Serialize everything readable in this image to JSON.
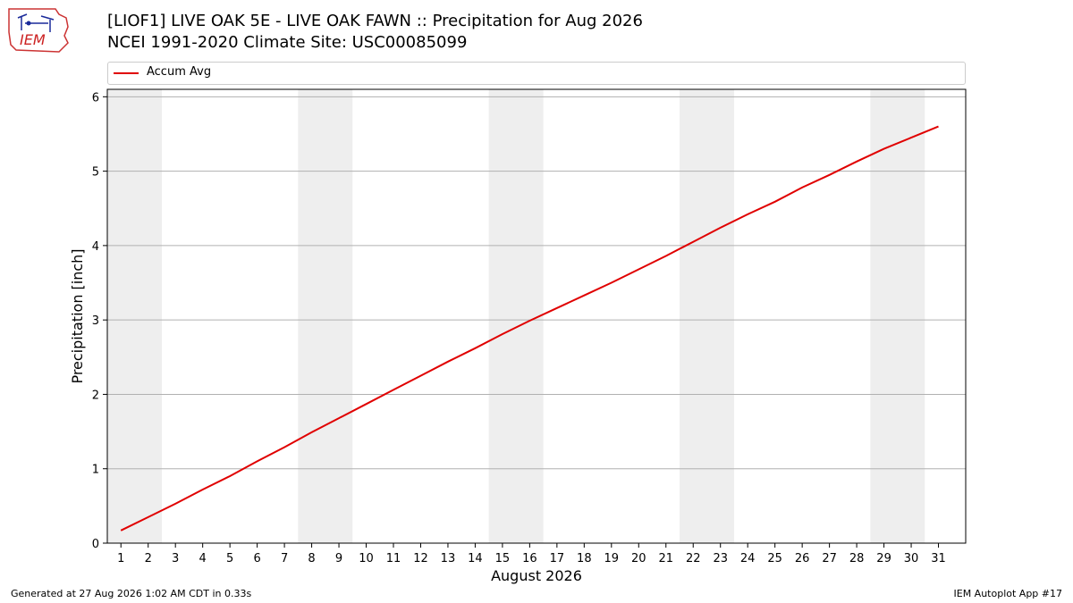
{
  "header": {
    "title_line1": "[LIOF1] LIVE OAK 5E - LIVE OAK FAWN :: Precipitation for Aug 2026",
    "title_line2": "NCEI 1991-2020 Climate Site: USC00085099",
    "logo_text": "IEM"
  },
  "footer": {
    "generated": "Generated at 27 Aug 2026 1:02 AM CDT in 0.33s",
    "app": "IEM Autoplot App #17"
  },
  "colors": {
    "series": "#e00000",
    "weekend_band": "#eeeeee",
    "grid": "#b0b0b0"
  },
  "chart_data": {
    "type": "line",
    "title": "[LIOF1] LIVE OAK 5E - LIVE OAK FAWN :: Precipitation for Aug 2026",
    "subtitle": "NCEI 1991-2020 Climate Site: USC00085099",
    "xlabel": "August 2026",
    "ylabel": "Precipitation [inch]",
    "xlim": [
      0.5,
      32
    ],
    "ylim": [
      0,
      6.1
    ],
    "x": [
      1,
      2,
      3,
      4,
      5,
      6,
      7,
      8,
      9,
      10,
      11,
      12,
      13,
      14,
      15,
      16,
      17,
      18,
      19,
      20,
      21,
      22,
      23,
      24,
      25,
      26,
      27,
      28,
      29,
      30,
      31
    ],
    "xticks": [
      "1",
      "2",
      "3",
      "4",
      "5",
      "6",
      "7",
      "8",
      "9",
      "10",
      "11",
      "12",
      "13",
      "14",
      "15",
      "16",
      "17",
      "18",
      "19",
      "20",
      "21",
      "22",
      "23",
      "24",
      "25",
      "26",
      "27",
      "28",
      "29",
      "30",
      "31"
    ],
    "yticks": [
      0,
      1,
      2,
      3,
      4,
      5,
      6
    ],
    "grid": "y",
    "legend_position": "top",
    "weekend_bands": [
      [
        0.5,
        2.5
      ],
      [
        7.5,
        9.5
      ],
      [
        14.5,
        16.5
      ],
      [
        21.5,
        23.5
      ],
      [
        28.5,
        30.5
      ]
    ],
    "series": [
      {
        "name": "Accum Avg",
        "color": "#e00000",
        "values": [
          0.17,
          0.35,
          0.53,
          0.72,
          0.9,
          1.1,
          1.29,
          1.49,
          1.68,
          1.87,
          2.06,
          2.25,
          2.44,
          2.62,
          2.81,
          2.99,
          3.16,
          3.33,
          3.5,
          3.68,
          3.86,
          4.05,
          4.24,
          4.42,
          4.59,
          4.78,
          4.95,
          5.13,
          5.3,
          5.45,
          5.6
        ]
      }
    ]
  }
}
